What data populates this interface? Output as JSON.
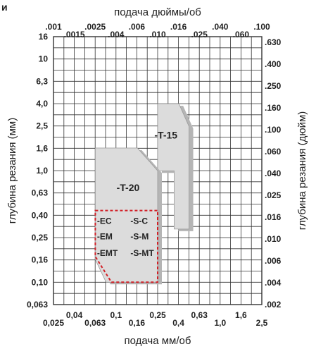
{
  "corner_label": "и",
  "chart_data": {
    "type": "diagram",
    "title_top": "подача дюймы/об",
    "title_bottom": "подача мм/об",
    "ylabel_left": "глубина резания (мм)",
    "ylabel_right": "глубина резания (дюйм)",
    "x_top_ticks": [
      ".001",
      ".0015",
      ".0025",
      ".004",
      ".006",
      ".010",
      ".016",
      ".025",
      ".040",
      ".060",
      ".100"
    ],
    "x_bottom_ticks": [
      "0,025",
      "0,04",
      "0,063",
      "0,1",
      "0,16",
      "0,25",
      "0,4",
      "0,63",
      "1,0",
      "1,6",
      "2,5"
    ],
    "y_left_ticks": [
      "16",
      "10",
      "6,3",
      "4,0",
      "2,5",
      "1,6",
      "1,0",
      "0,63",
      "0,40",
      "0,25",
      "0,16",
      "0,10",
      "0,063"
    ],
    "y_right_ticks": [
      ".630",
      ".400",
      ".250",
      ".160",
      ".100",
      ".060",
      ".040",
      ".025",
      ".016",
      ".010",
      ".006",
      ".004",
      ".002"
    ],
    "regions": [
      {
        "label": "-T-15",
        "vertices_mm": [
          [
            0.25,
            4.0
          ],
          [
            0.4,
            4.0
          ],
          [
            0.5,
            2.5
          ],
          [
            0.5,
            0.3
          ],
          [
            0.36,
            0.3
          ],
          [
            0.36,
            1.0
          ],
          [
            0.25,
            1.0
          ]
        ]
      },
      {
        "label": "-T-20",
        "vertices_mm": [
          [
            0.063,
            1.6
          ],
          [
            0.16,
            1.6
          ],
          [
            0.25,
            1.0
          ],
          [
            0.25,
            0.1
          ],
          [
            0.08,
            0.1
          ],
          [
            0.063,
            0.16
          ]
        ]
      }
    ],
    "inner_box_labels": [
      "-EC",
      "-S-C",
      "-EM",
      "-S-M",
      "-EMT",
      "-S-MT"
    ],
    "accent_color": "#d21f26",
    "gray_fill": "#dcdcdc",
    "grid_color": "#333333"
  }
}
